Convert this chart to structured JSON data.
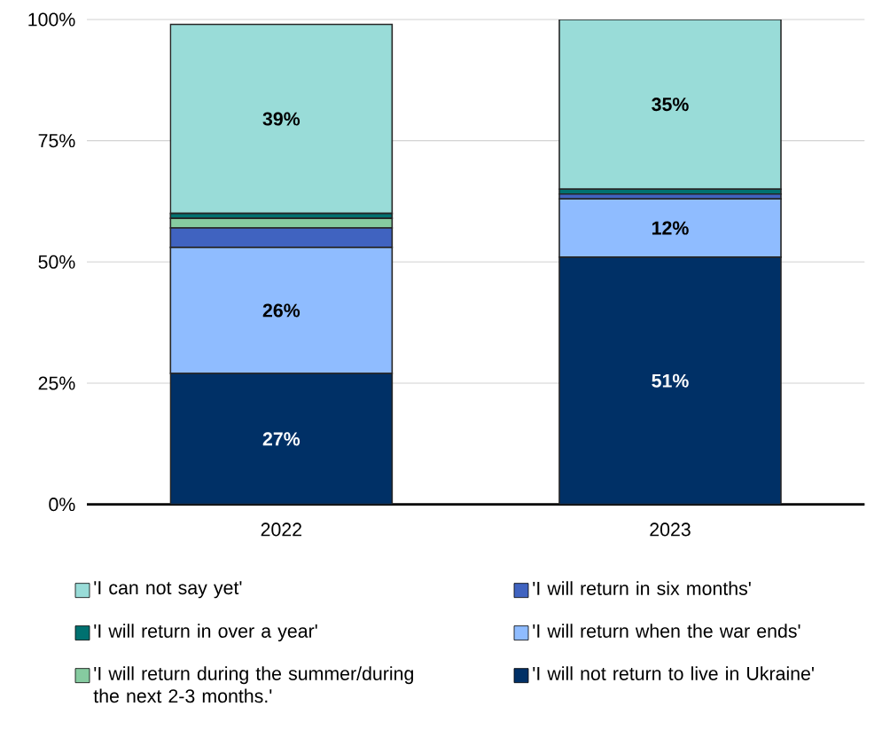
{
  "chart_data": {
    "type": "bar",
    "stacked": true,
    "categories": [
      "2022",
      "2023"
    ],
    "series": [
      {
        "name": "'I will not return to live in Ukraine'",
        "color": "#003066",
        "values": [
          27,
          51
        ],
        "value_labels": [
          "27%",
          "51%"
        ]
      },
      {
        "name": "'I will return when the war ends'",
        "color": "#8fbcff",
        "values": [
          26,
          12
        ],
        "value_labels": [
          "26%",
          "12%"
        ]
      },
      {
        "name": "'I will return in six months'",
        "color": "#4063c0",
        "values": [
          4,
          1
        ],
        "value_labels": [
          null,
          null
        ]
      },
      {
        "name": "'I will return during the summer/during the next 2-3 months.'",
        "color": "#86cba0",
        "values": [
          2,
          0
        ],
        "value_labels": [
          null,
          null
        ]
      },
      {
        "name": "'I will return in over a year'",
        "color": "#007170",
        "values": [
          1,
          1
        ],
        "value_labels": [
          null,
          null
        ]
      },
      {
        "name": "'I can not say yet'",
        "color": "#99dcd8",
        "values": [
          39,
          35
        ],
        "value_labels": [
          "39%",
          "35%"
        ]
      }
    ],
    "ylim": [
      0,
      100
    ],
    "yticks": [
      {
        "value": 0,
        "label": "0%"
      },
      {
        "value": 25,
        "label": "25%"
      },
      {
        "value": 50,
        "label": "50%"
      },
      {
        "value": 75,
        "label": "75%"
      },
      {
        "value": 100,
        "label": "100%"
      }
    ],
    "grid": "y",
    "legend": "bottom"
  }
}
